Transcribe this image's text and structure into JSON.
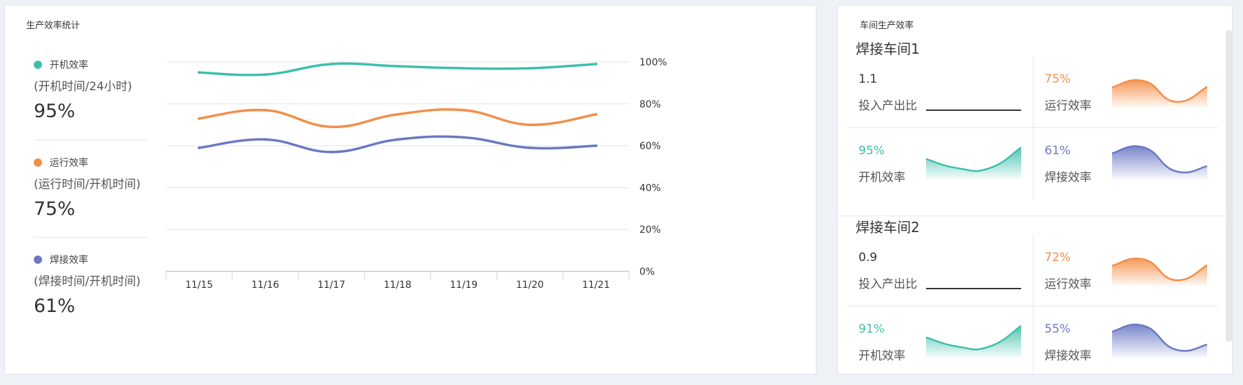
{
  "efficiency_panel": {
    "title": "生产效率统计",
    "legend": [
      {
        "name": "开机效率",
        "formula": "(开机时间/24小时)",
        "value": "95%",
        "color": "#3dbfac"
      },
      {
        "name": "运行效率",
        "formula": "(运行时间/开机时间)",
        "value": "75%",
        "color": "#f48d45"
      },
      {
        "name": "焊接效率",
        "formula": "(焊接时间/开机时间)",
        "value": "61%",
        "color": "#6a78c4"
      }
    ]
  },
  "chart_data": {
    "type": "line",
    "categories": [
      "11/15",
      "11/16",
      "11/17",
      "11/18",
      "11/19",
      "11/20",
      "11/21"
    ],
    "series": [
      {
        "name": "开机效率",
        "color": "#3dbfac",
        "values": [
          95,
          94,
          99,
          98,
          97,
          97,
          99
        ]
      },
      {
        "name": "运行效率",
        "color": "#f48d45",
        "values": [
          73,
          77,
          69,
          75,
          77,
          70,
          75
        ]
      },
      {
        "name": "焊接效率",
        "color": "#6a78c4",
        "values": [
          59,
          63,
          57,
          63,
          64,
          59,
          60
        ]
      }
    ],
    "ylim": [
      0,
      100
    ],
    "yticks": [
      "0%",
      "20%",
      "40%",
      "60%",
      "80%",
      "100%"
    ],
    "yaxis_side": "right",
    "grid": true,
    "smooth": true
  },
  "workshop_panel": {
    "title": "车间生产效率",
    "workshops": [
      {
        "name": "焊接车间1",
        "ratio": {
          "value": "1.1",
          "label": "投入产出比"
        },
        "running": {
          "value": "75%",
          "label": "运行效率",
          "color": "#f48d45",
          "trend": [
            0.6,
            0.82,
            0.1,
            0.62
          ]
        },
        "power_on": {
          "value": "95%",
          "label": "开机效率",
          "color": "#3dbfac",
          "trend": [
            0.6,
            0.28,
            0.28,
            1.0
          ]
        },
        "welding": {
          "value": "61%",
          "label": "焊接效率",
          "color": "#6a78c4",
          "trend": [
            0.8,
            1.0,
            0.18,
            0.35
          ]
        }
      },
      {
        "name": "焊接车间2",
        "ratio": {
          "value": "0.9",
          "label": "投入产出比"
        },
        "running": {
          "value": "72%",
          "label": "运行效率",
          "color": "#f48d45",
          "trend": [
            0.6,
            0.82,
            0.1,
            0.62
          ]
        },
        "power_on": {
          "value": "91%",
          "label": "开机效率",
          "color": "#3dbfac",
          "trend": [
            0.6,
            0.28,
            0.28,
            1.0
          ]
        },
        "welding": {
          "value": "55%",
          "label": "焊接效率",
          "color": "#6a78c4",
          "trend": [
            0.8,
            1.0,
            0.18,
            0.35
          ]
        }
      }
    ]
  }
}
